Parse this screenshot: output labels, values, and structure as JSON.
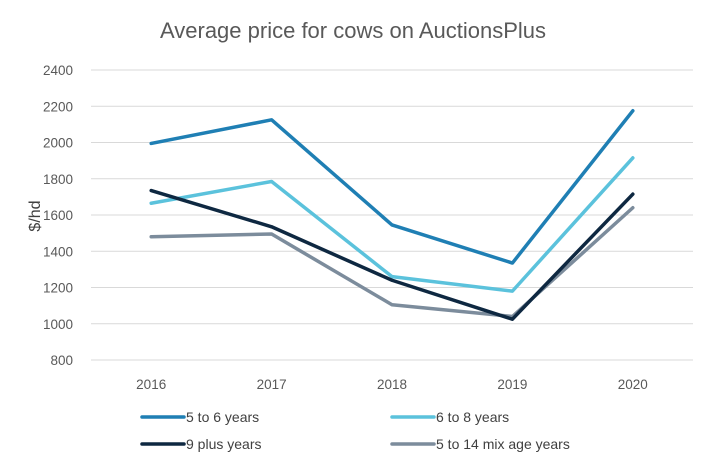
{
  "chart_data": {
    "type": "line",
    "title": "Average price for cows on AuctionsPlus",
    "xlabel": "",
    "ylabel": "$/hd",
    "categories": [
      "2016",
      "2017",
      "2018",
      "2019",
      "2020"
    ],
    "ylim": [
      800,
      2400
    ],
    "yticks": [
      800,
      1000,
      1200,
      1400,
      1600,
      1800,
      2000,
      2200,
      2400
    ],
    "grid": true,
    "legend_position": "bottom",
    "series": [
      {
        "name": "5 to 6 years",
        "color": "#1f7fb4",
        "values": [
          1995,
          2125,
          1545,
          1335,
          2175
        ]
      },
      {
        "name": "6 to 8 years",
        "color": "#5bc2dc",
        "values": [
          1665,
          1785,
          1260,
          1180,
          1915
        ]
      },
      {
        "name": "9 plus years",
        "color": "#0e2841",
        "values": [
          1735,
          1535,
          1240,
          1025,
          1715
        ]
      },
      {
        "name": "5 to 14 mix age years",
        "color": "#7c8c9c",
        "values": [
          1480,
          1495,
          1105,
          1040,
          1640
        ]
      }
    ]
  }
}
